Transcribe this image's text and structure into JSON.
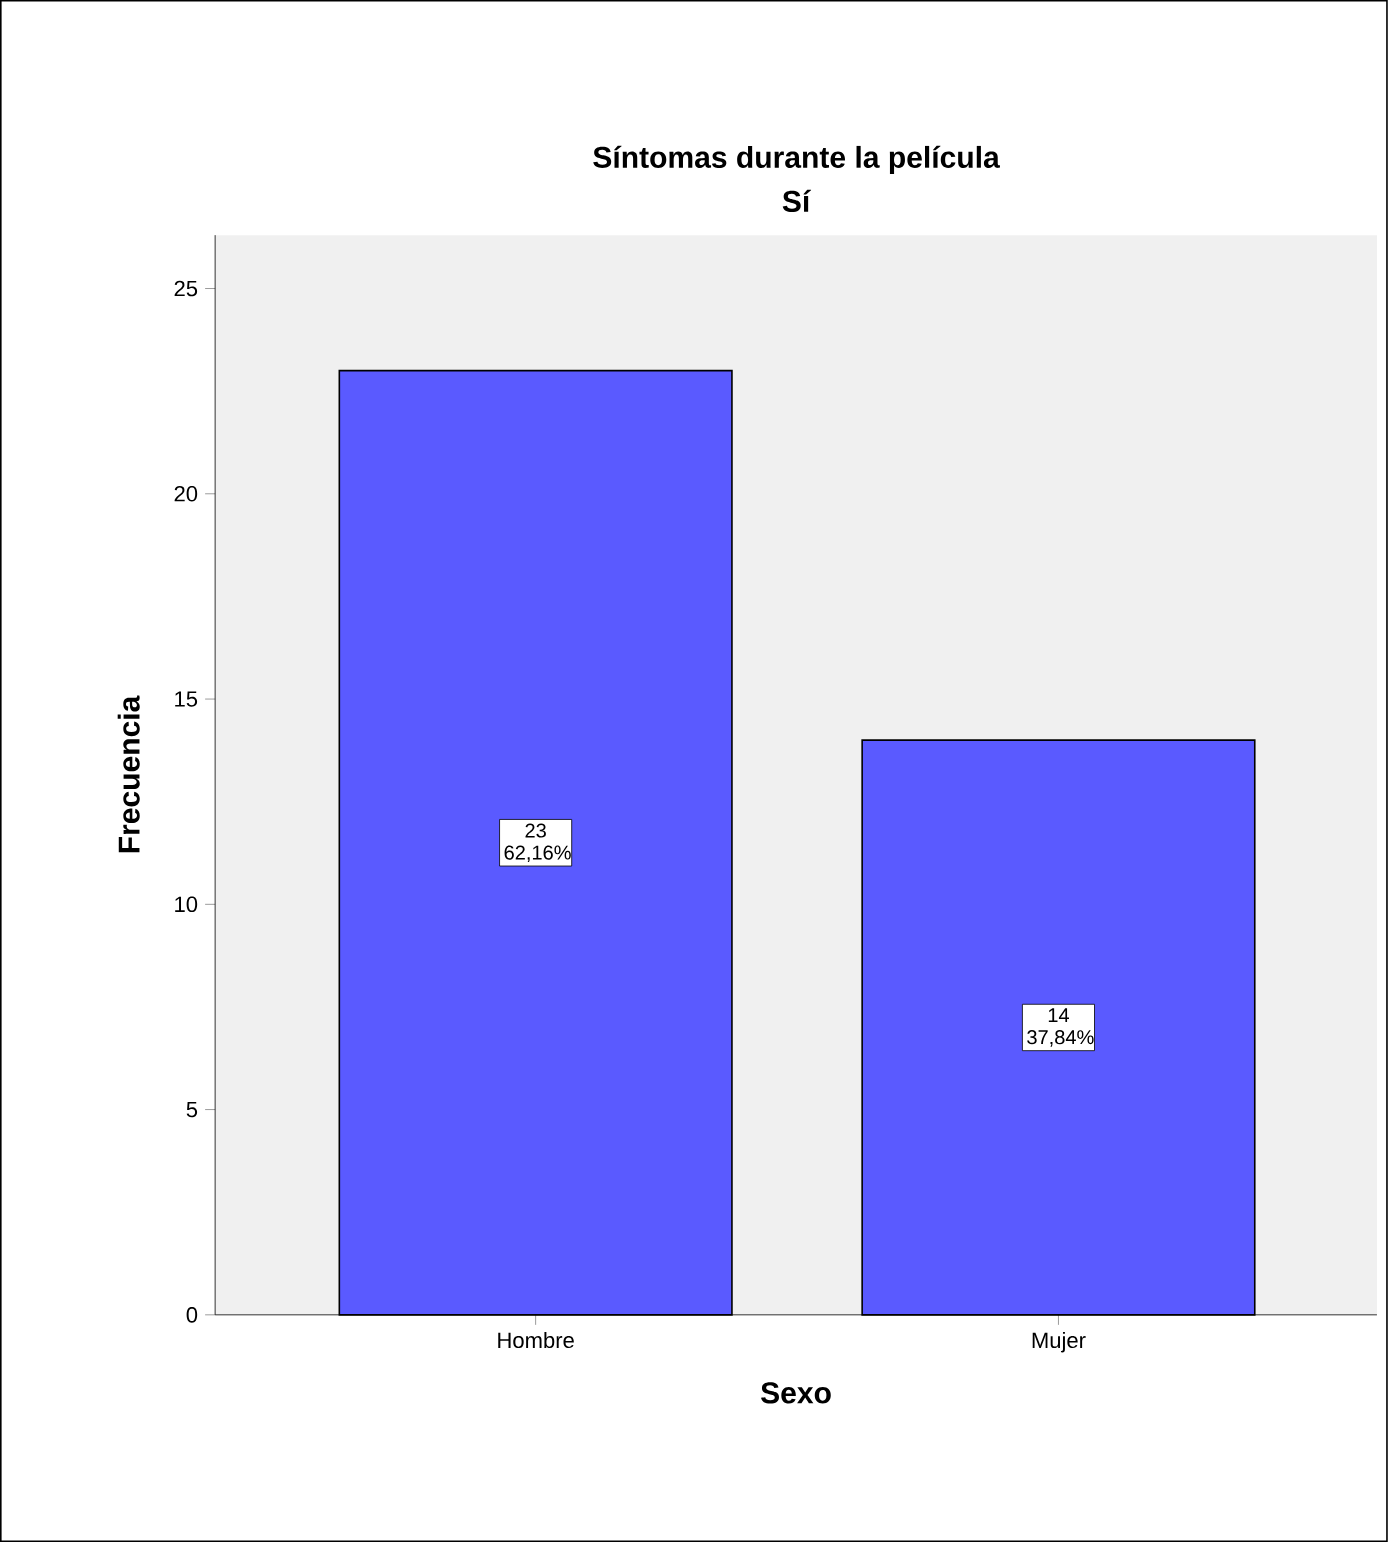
{
  "chart_data": {
    "type": "bar",
    "title": "Síntomas durante la película",
    "subtitle": "Sí",
    "xlabel": "Sexo",
    "ylabel": "Frecuencia",
    "categories": [
      "Hombre",
      "Mujer"
    ],
    "values": [
      23,
      14
    ],
    "value_labels": [
      "23 62,16%",
      "14 37,84%"
    ],
    "color": "#5a5aff",
    "ylim": [
      0,
      26.3
    ],
    "yticks": [
      0,
      5,
      10,
      15,
      20,
      25
    ]
  }
}
